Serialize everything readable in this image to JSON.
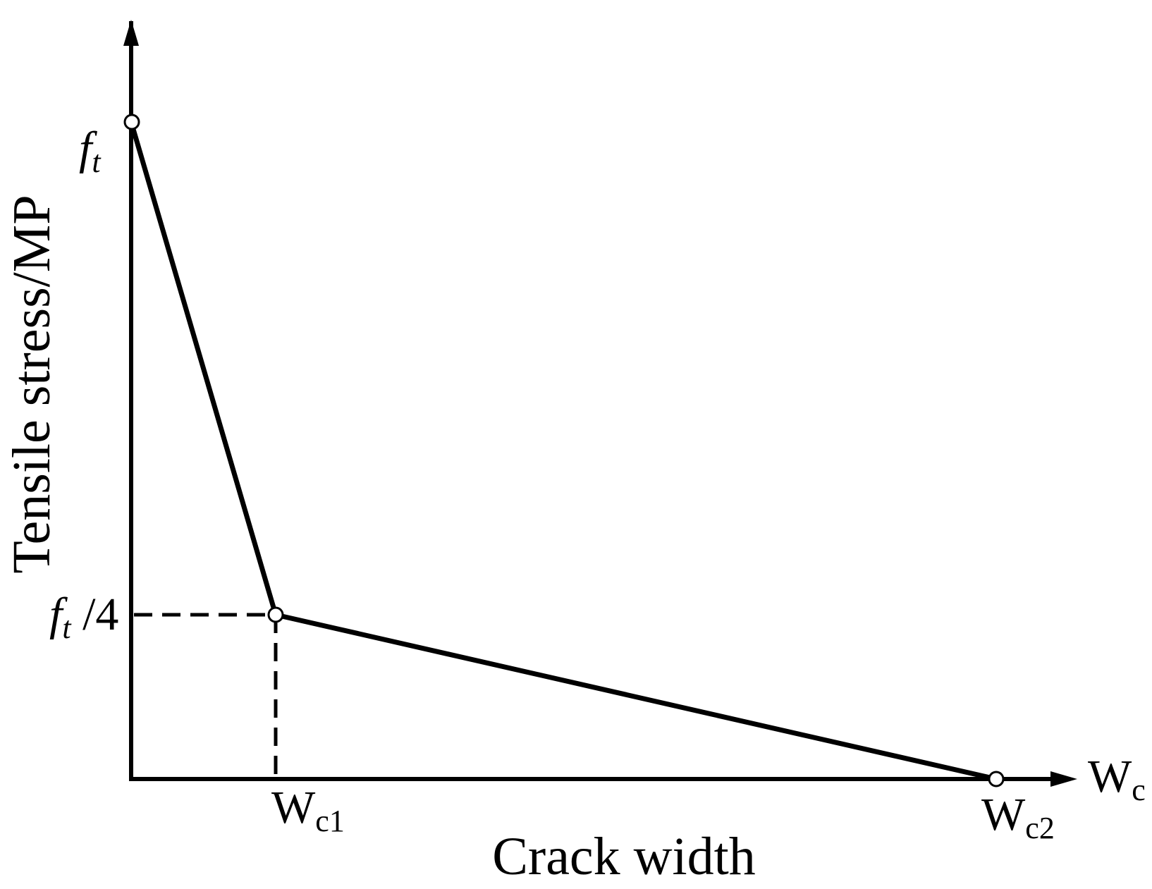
{
  "axes": {
    "x_label": "Crack width",
    "y_label": "Tensile stress/MP",
    "x_end": {
      "main": "W",
      "sub": "c"
    }
  },
  "points": [
    {
      "y_label": {
        "main": "f",
        "sub": "t"
      }
    },
    {
      "y_label": {
        "main": "f",
        "sub": "t",
        "suffix": " /4"
      },
      "x_label": {
        "main": "W",
        "sub": "c1"
      }
    },
    {
      "x_label": {
        "main": "W",
        "sub": "c2"
      }
    }
  ]
}
